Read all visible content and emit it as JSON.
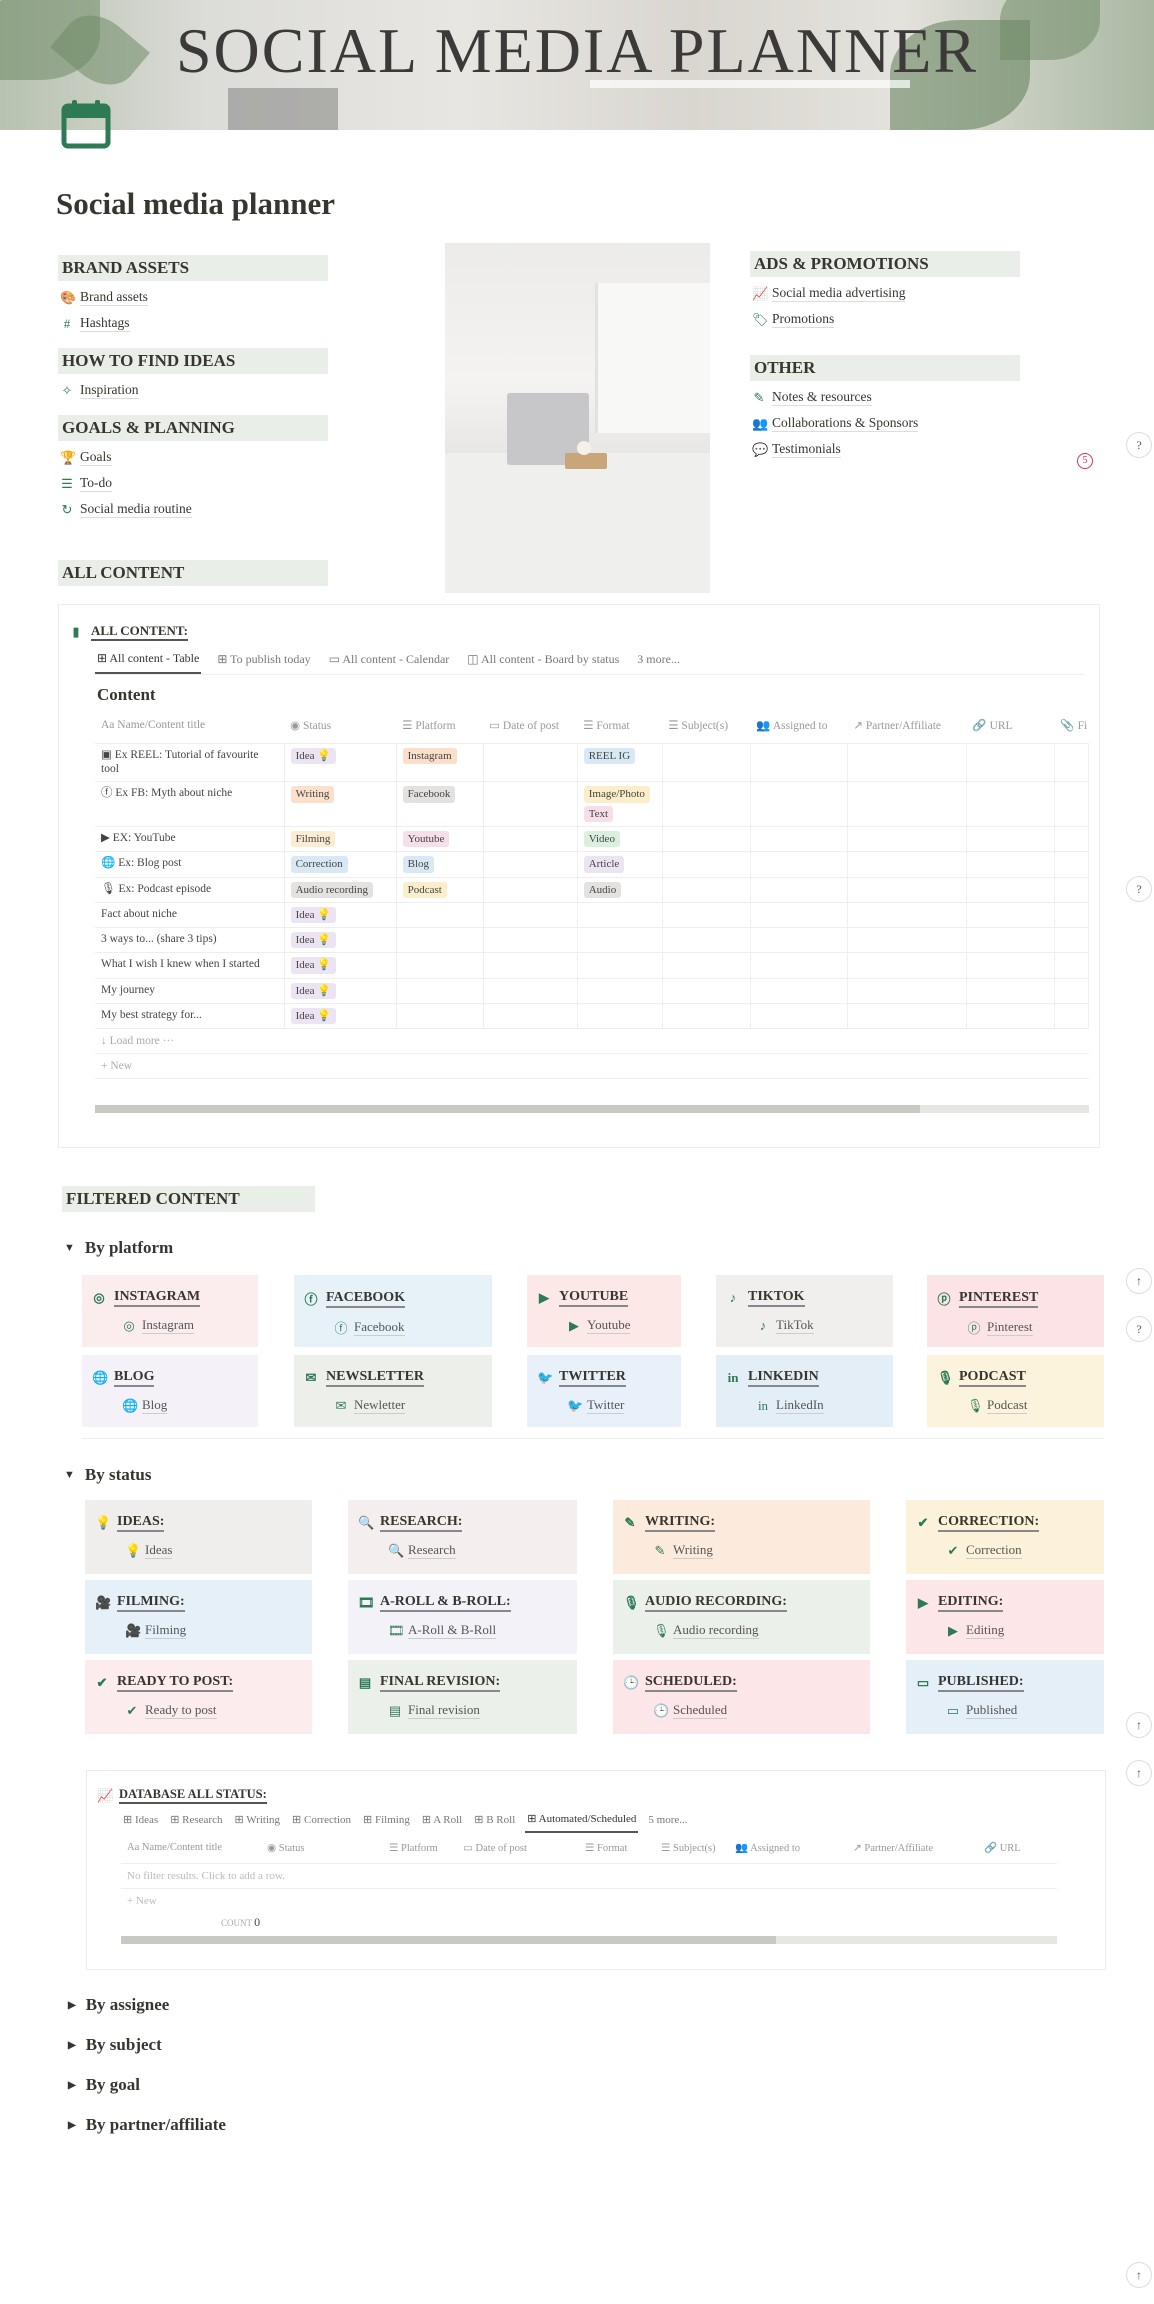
{
  "banner": {
    "title": "SOCIAL MEDIA PLANNER"
  },
  "page": {
    "title": "Social media planner",
    "icon": "calendar-icon"
  },
  "colors": {
    "accent": "#2d7a55",
    "section_bg": "#e9eee8"
  },
  "left_sections": [
    {
      "heading": "BRAND ASSETS",
      "items": [
        {
          "icon": "palette-icon",
          "glyph": "🎨",
          "label": "Brand assets"
        },
        {
          "icon": "hashtag-icon",
          "glyph": "#",
          "label": "Hashtags"
        }
      ]
    },
    {
      "heading": "HOW TO FIND IDEAS",
      "items": [
        {
          "icon": "sparkle-icon",
          "glyph": "✧",
          "label": "Inspiration"
        }
      ]
    },
    {
      "heading": "GOALS & PLANNING",
      "items": [
        {
          "icon": "trophy-icon",
          "glyph": "🏆",
          "label": "Goals"
        },
        {
          "icon": "list-icon",
          "glyph": "☰",
          "label": "To-do"
        },
        {
          "icon": "refresh-icon",
          "glyph": "↻",
          "label": "Social media routine"
        }
      ]
    },
    {
      "heading": "ALL CONTENT",
      "items": []
    }
  ],
  "right_sections": [
    {
      "heading": "ADS & PROMOTIONS",
      "items": [
        {
          "icon": "chart-up-icon",
          "glyph": "📈",
          "label": "Social media advertising"
        },
        {
          "icon": "tag-icon",
          "glyph": "🏷",
          "label": "Promotions"
        }
      ]
    },
    {
      "heading": "OTHER",
      "items": [
        {
          "icon": "pencil-icon",
          "glyph": "✎",
          "label": "Notes & resources"
        },
        {
          "icon": "people-icon",
          "glyph": "👥",
          "label": "Collaborations & Sponsors"
        },
        {
          "icon": "speech-bubble-icon",
          "glyph": "💬",
          "label": "Testimonials"
        }
      ]
    }
  ],
  "badge": "5",
  "all_content": {
    "heading": "ALL CONTENT:",
    "tabs": [
      "All content - Table",
      "To publish today",
      "All content - Calendar",
      "All content - Board by status",
      "3 more..."
    ],
    "table_title": "Content",
    "columns": [
      "Aa Name/Content title",
      "◉ Status",
      "☰ Platform",
      "▭ Date of post",
      "☰ Format",
      "☰ Subject(s)",
      "👥 Assigned to",
      "↗ Partner/Affiliate",
      "🔗 URL",
      "📎 Fi"
    ],
    "rows": [
      {
        "name": "Ex REEL: Tutorial of favourite tool",
        "icon": "▣",
        "status": "Idea 💡",
        "platform": "Instagram",
        "format": [
          "REEL IG"
        ]
      },
      {
        "name": "Ex FB: Myth about niche",
        "icon": "ⓕ",
        "status": "Writing",
        "platform": "Facebook",
        "format": [
          "Image/Photo",
          "Text"
        ]
      },
      {
        "name": "EX: YouTube",
        "icon": "▶",
        "status": "Filming",
        "platform": "Youtube",
        "format": [
          "Video"
        ]
      },
      {
        "name": "Ex: Blog post",
        "icon": "🌐",
        "status": "Correction",
        "platform": "Blog",
        "format": [
          "Article"
        ]
      },
      {
        "name": "Ex: Podcast episode",
        "icon": "🎙",
        "status": "Audio recording",
        "platform": "Podcast",
        "format": [
          "Audio"
        ]
      },
      {
        "name": "Fact about niche",
        "icon": "",
        "status": "Idea 💡",
        "platform": "",
        "format": []
      },
      {
        "name": "3 ways to... (share 3 tips)",
        "icon": "",
        "status": "Idea 💡",
        "platform": "",
        "format": []
      },
      {
        "name": "What I wish I knew when I started",
        "icon": "",
        "status": "Idea 💡",
        "platform": "",
        "format": []
      },
      {
        "name": "My journey",
        "icon": "",
        "status": "Idea 💡",
        "platform": "",
        "format": []
      },
      {
        "name": "My best strategy for...",
        "icon": "",
        "status": "Idea 💡",
        "platform": "",
        "format": []
      }
    ],
    "load_more": "↓ Load more ···",
    "new": "+ New",
    "scroll_fraction": 0.83
  },
  "tag_colors": {
    "Idea 💡": "#ece4f3",
    "Writing": "#fbe0cc",
    "Filming": "#fbecd2",
    "Correction": "#d8e9f5",
    "Audio recording": "#e3e2e0",
    "Instagram": "#fbdfcb",
    "Facebook": "#e3e2e0",
    "Youtube": "#f6dfe9",
    "Blog": "#d8e9f5",
    "Podcast": "#fbeecb",
    "REEL IG": "#d8e9f5",
    "Image/Photo": "#fbeecb",
    "Text": "#f6dfe9",
    "Video": "#dcefdf",
    "Article": "#ece4f3",
    "Audio": "#e3e2e0"
  },
  "filtered": {
    "heading": "FILTERED CONTENT"
  },
  "by_platform": {
    "label": "By platform",
    "cards": [
      {
        "title": "INSTAGRAM",
        "sub": "Instagram",
        "glyph": "◎",
        "icon": "instagram-icon",
        "bg": "#fbecee"
      },
      {
        "title": "FACEBOOK",
        "sub": "Facebook",
        "glyph": "ⓕ",
        "icon": "facebook-icon",
        "bg": "#e7f1f8"
      },
      {
        "title": "YOUTUBE",
        "sub": "Youtube",
        "glyph": "▶",
        "icon": "youtube-icon",
        "bg": "#fde8e8"
      },
      {
        "title": "TIKTOK",
        "sub": "TikTok",
        "glyph": "♪",
        "icon": "tiktok-icon",
        "bg": "#f0efed"
      },
      {
        "title": "PINTEREST",
        "sub": "Pinterest",
        "glyph": "ⓟ",
        "icon": "pinterest-icon",
        "bg": "#fce4e6"
      },
      {
        "title": "BLOG",
        "sub": "Blog",
        "glyph": "🌐",
        "icon": "globe-icon",
        "bg": "#f4f2f8"
      },
      {
        "title": "NEWSLETTER",
        "sub": "Newletter",
        "glyph": "✉",
        "icon": "envelope-icon",
        "bg": "#edf0ea"
      },
      {
        "title": "TWITTER",
        "sub": "Twitter",
        "glyph": "🐦",
        "icon": "twitter-icon",
        "bg": "#e8f1f9"
      },
      {
        "title": "LINKEDIN",
        "sub": "LinkedIn",
        "glyph": "in",
        "icon": "linkedin-icon",
        "bg": "#e4eef7"
      },
      {
        "title": "PODCAST",
        "sub": "Podcast",
        "glyph": "🎙",
        "icon": "microphone-icon",
        "bg": "#fbf3dc"
      }
    ]
  },
  "by_status": {
    "label": "By status",
    "cards": [
      {
        "title": "IDEAS:",
        "sub": "Ideas",
        "glyph": "💡",
        "icon": "lightbulb-icon",
        "bg": "#efeeec"
      },
      {
        "title": "RESEARCH:",
        "sub": "Research",
        "glyph": "🔍",
        "icon": "search-icon",
        "bg": "#f5eeee"
      },
      {
        "title": "WRITING:",
        "sub": "Writing",
        "glyph": "✎",
        "icon": "pencil-icon",
        "bg": "#fcebdc"
      },
      {
        "title": "CORRECTION:",
        "sub": "Correction",
        "glyph": "✔",
        "icon": "check-circle-icon",
        "bg": "#fbf2d9"
      },
      {
        "title": "FILMING:",
        "sub": "Filming",
        "glyph": "🎥",
        "icon": "video-camera-icon",
        "bg": "#e6f0f8"
      },
      {
        "title": "A-ROLL & B-ROLL:",
        "sub": "A-Roll & B-Roll",
        "glyph": "🎞",
        "icon": "film-camera-icon",
        "bg": "#f4f2f9"
      },
      {
        "title": "AUDIO RECORDING:",
        "sub": "Audio recording",
        "glyph": "🎙",
        "icon": "microphone-icon",
        "bg": "#ebf0ea"
      },
      {
        "title": "EDITING:",
        "sub": "Editing",
        "glyph": "▶",
        "icon": "play-circle-icon",
        "bg": "#fce6e8"
      },
      {
        "title": "READY TO POST:",
        "sub": "Ready to post",
        "glyph": "✔",
        "icon": "verified-icon",
        "bg": "#fcecee"
      },
      {
        "title": "FINAL REVISION:",
        "sub": "Final revision",
        "glyph": "▤",
        "icon": "calendar-grid-icon",
        "bg": "#ebf0ea"
      },
      {
        "title": "SCHEDULED:",
        "sub": "Scheduled",
        "glyph": "🕒",
        "icon": "clock-icon",
        "bg": "#fde6e8"
      },
      {
        "title": "PUBLISHED:",
        "sub": "Published",
        "glyph": "▭",
        "icon": "browser-icon",
        "bg": "#e5eff8"
      }
    ]
  },
  "status_db": {
    "heading": "DATABASE ALL STATUS:",
    "tabs": [
      "Ideas",
      "Research",
      "Writing",
      "Correction",
      "Filming",
      "A Roll",
      "B Roll",
      "Automated/Scheduled",
      "5 more..."
    ],
    "active_tab": "Automated/Scheduled",
    "columns": [
      "Aa Name/Content title",
      "◉ Status",
      "☰ Platform",
      "▭ Date of post",
      "☰ Format",
      "☰ Subject(s)",
      "👥 Assigned to",
      "↗ Partner/Affiliate",
      "🔗 URL"
    ],
    "empty": "No filter results. Click to add a row.",
    "new": "+ New",
    "count_label": "COUNT",
    "count": "0",
    "scroll_fraction": 0.7
  },
  "toggles": [
    "By assignee",
    "By subject",
    "By goal",
    "By partner/affiliate"
  ],
  "fabs": [
    "?",
    "?",
    "↑",
    "?",
    "↑",
    "↑",
    "↑"
  ]
}
